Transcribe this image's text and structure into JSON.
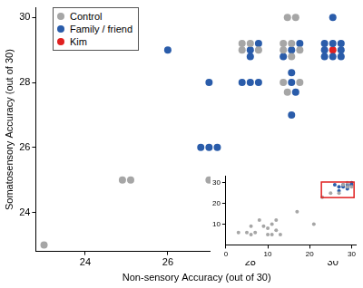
{
  "chart_data": [
    {
      "type": "scatter",
      "xlabel": "Non-sensory Accuracy (out of 30)",
      "ylabel": "Somatosensory Accuracy (out of 30)",
      "xlim": [
        22.8,
        30.6
      ],
      "ylim": [
        22.8,
        30.3
      ],
      "xticks": [
        24,
        26,
        28,
        30
      ],
      "yticks": [
        24,
        26,
        28,
        30
      ],
      "grid": false,
      "legend": "upper left",
      "marker": "circle",
      "series": [
        {
          "name": "Control",
          "color": "#a6a6a6",
          "x": [
            23,
            24.9,
            25.1,
            27,
            28.9,
            29.1,
            27.8,
            28.0,
            27.8,
            28.2,
            28.8,
            29.0,
            28.8,
            29.2,
            29.0,
            28.8,
            29.2,
            28.9
          ],
          "y": [
            23,
            25,
            25,
            25,
            30,
            30,
            29.2,
            29.2,
            29.0,
            29.0,
            29.2,
            29.2,
            29.0,
            29.0,
            28.8,
            28.0,
            28.0,
            27.7
          ]
        },
        {
          "name": "Family / friend",
          "color": "#2a5caa",
          "x": [
            26,
            27,
            26.8,
            27,
            27.2,
            27.8,
            28.0,
            28.2,
            28.2,
            28.0,
            28.0,
            29.2,
            29.0,
            28.8,
            29,
            29,
            29.1,
            29,
            30,
            29.8,
            30,
            30.2,
            29.8,
            30.2,
            29.8,
            30,
            30.2
          ],
          "y": [
            29,
            28,
            26,
            26,
            26,
            28,
            28,
            28,
            29.2,
            29.0,
            28.8,
            29.2,
            29.0,
            28.8,
            28.3,
            28,
            27.7,
            27,
            30,
            29.2,
            29.2,
            29.2,
            29,
            29,
            28.8,
            28.8,
            28.8
          ]
        },
        {
          "name": "Kim",
          "color": "#e02020",
          "x": [
            30
          ],
          "y": [
            29
          ]
        }
      ]
    },
    {
      "type": "scatter",
      "xlim": [
        0,
        31
      ],
      "ylim": [
        0,
        33
      ],
      "xticks": [
        0,
        10,
        20,
        30
      ],
      "yticks": [
        10,
        20,
        30
      ],
      "grid": false,
      "marker": "circle",
      "series": [
        {
          "name": "Control",
          "color": "#a6a6a6",
          "x": [
            3,
            5,
            6,
            7,
            6,
            8,
            9,
            10,
            10,
            11,
            12,
            11,
            12,
            13,
            17,
            21,
            23,
            25,
            27,
            28,
            29,
            29,
            30
          ],
          "y": [
            6,
            6,
            5,
            6,
            9,
            12,
            9,
            8,
            5,
            5,
            12,
            10,
            7,
            5,
            16,
            10,
            23,
            25,
            25,
            29,
            30,
            28,
            28
          ]
        },
        {
          "name": "Family / friend",
          "color": "#2a5caa",
          "x": [
            26,
            27,
            27,
            28,
            28,
            29,
            29,
            30,
            30,
            29
          ],
          "y": [
            29,
            28,
            26,
            28,
            29,
            29,
            27,
            29,
            30,
            28
          ]
        },
        {
          "name": "Kim",
          "color": "#e02020",
          "x": [
            30
          ],
          "y": [
            29
          ]
        }
      ]
    }
  ]
}
